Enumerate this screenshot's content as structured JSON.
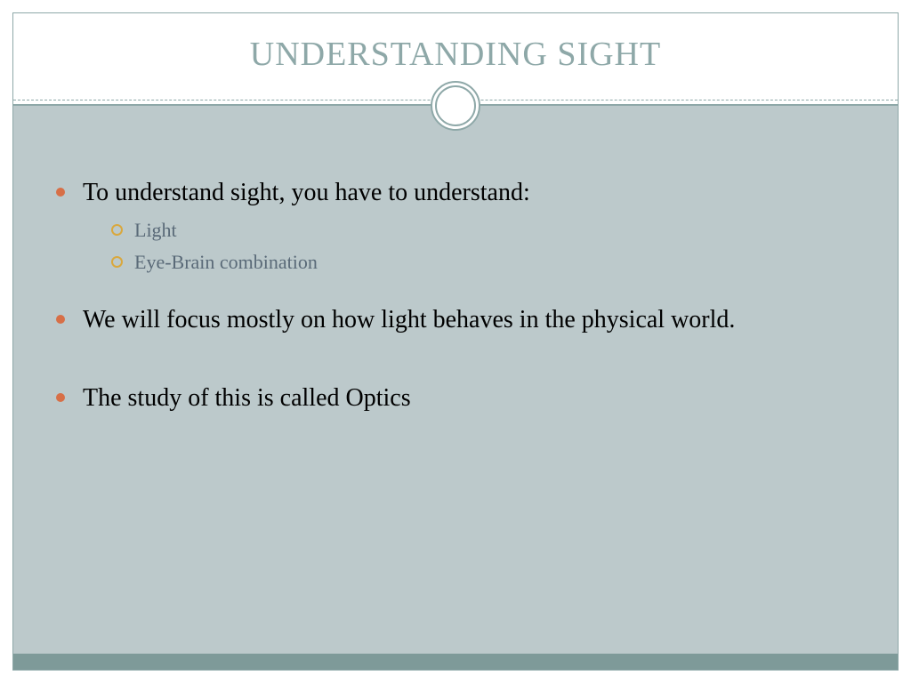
{
  "colors": {
    "accent_teal": "#8ea8a8",
    "body_bg": "#bcc9cb",
    "footer_bar": "#7e9a99",
    "title_text": "#8ea8a8",
    "main_text": "#000000",
    "sub_text": "#5a6a78",
    "bullet_filled": "#d76f47",
    "bullet_hollow": "#d9a83e"
  },
  "title": "UNDERSTANDING SIGHT",
  "bullets": [
    {
      "text": "To understand sight, you have to understand:",
      "sub": [
        "Light",
        "Eye-Brain combination"
      ]
    },
    {
      "text": "We will focus mostly on how light behaves in the physical world."
    },
    {
      "text": "The study of this is called Optics"
    }
  ]
}
